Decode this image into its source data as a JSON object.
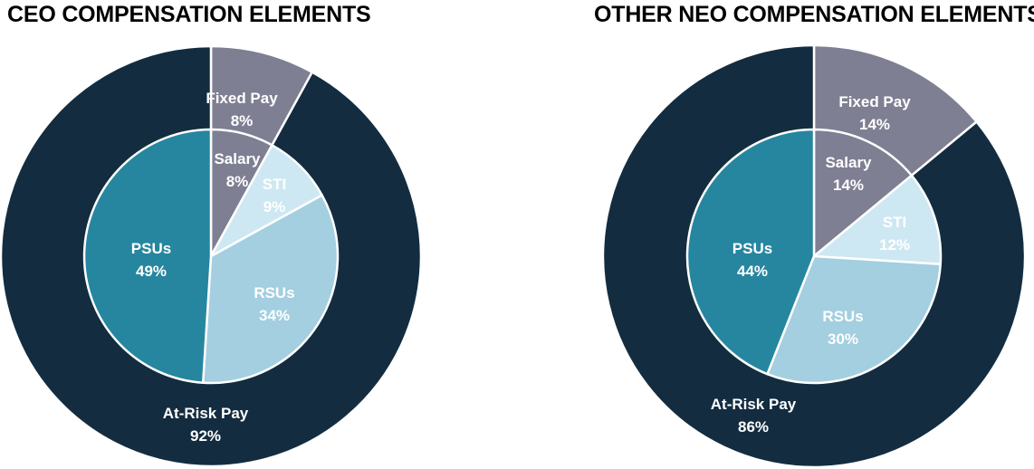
{
  "chart_data": [
    {
      "type": "pie",
      "title": "CEO COMPENSATION ELEMENTS",
      "outer": [
        {
          "label": "Fixed Pay",
          "value": 8,
          "display": "8%",
          "color": "#7f7f93",
          "text_color": "#ffffff"
        },
        {
          "label": "At-Risk Pay",
          "value": 92,
          "display": "92%",
          "color": "#132c40",
          "text_color": "#ffffff"
        }
      ],
      "inner": [
        {
          "label": "Salary",
          "value": 8,
          "display": "8%",
          "color": "#7f7f93",
          "text_color": "#ffffff"
        },
        {
          "label": "STI",
          "value": 9,
          "display": "9%",
          "color": "#cde8f2",
          "text_color": "#ffffff"
        },
        {
          "label": "RSUs",
          "value": 34,
          "display": "34%",
          "color": "#a3cfe0",
          "text_color": "#ffffff"
        },
        {
          "label": "PSUs",
          "value": 49,
          "display": "49%",
          "color": "#26869f",
          "text_color": "#ffffff"
        }
      ]
    },
    {
      "type": "pie",
      "title": "OTHER NEO COMPENSATION ELEMENTS",
      "outer": [
        {
          "label": "Fixed Pay",
          "value": 14,
          "display": "14%",
          "color": "#7f7f93",
          "text_color": "#ffffff"
        },
        {
          "label": "At-Risk Pay",
          "value": 86,
          "display": "86%",
          "color": "#132c40",
          "text_color": "#ffffff"
        }
      ],
      "inner": [
        {
          "label": "Salary",
          "value": 14,
          "display": "14%",
          "color": "#7f7f93",
          "text_color": "#ffffff"
        },
        {
          "label": "STI",
          "value": 12,
          "display": "12%",
          "color": "#cde8f2",
          "text_color": "#ffffff"
        },
        {
          "label": "RSUs",
          "value": 30,
          "display": "30%",
          "color": "#a3cfe0",
          "text_color": "#ffffff"
        },
        {
          "label": "PSUs",
          "value": 44,
          "display": "44%",
          "color": "#26869f",
          "text_color": "#ffffff"
        }
      ]
    }
  ]
}
